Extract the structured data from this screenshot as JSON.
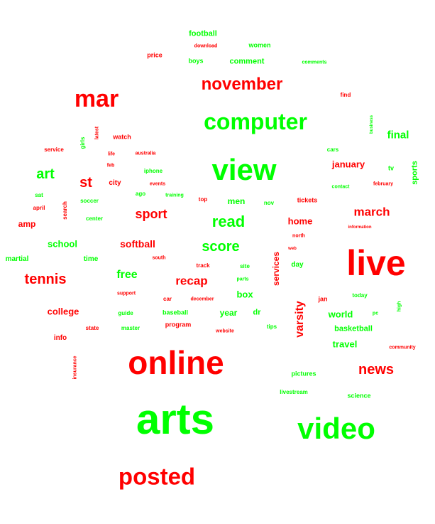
{
  "colors": {
    "red": "#ff0000",
    "green": "#00ff00",
    "background": "#ffffff"
  },
  "words": [
    {
      "text": "arts",
      "color": "green"
    },
    {
      "text": "live",
      "color": "red"
    },
    {
      "text": "online",
      "color": "red"
    },
    {
      "text": "video",
      "color": "green"
    },
    {
      "text": "view",
      "color": "green"
    },
    {
      "text": "posted",
      "color": "red"
    },
    {
      "text": "mar",
      "color": "red"
    },
    {
      "text": "computer",
      "color": "green"
    },
    {
      "text": "november",
      "color": "red"
    },
    {
      "text": "news",
      "color": "red"
    },
    {
      "text": "tennis",
      "color": "red"
    },
    {
      "text": "read",
      "color": "green"
    },
    {
      "text": "score",
      "color": "green"
    },
    {
      "text": "march",
      "color": "red"
    },
    {
      "text": "sport",
      "color": "red"
    },
    {
      "text": "art",
      "color": "green"
    },
    {
      "text": "st",
      "color": "red"
    },
    {
      "text": "recap",
      "color": "red"
    },
    {
      "text": "varsity",
      "color": "red"
    },
    {
      "text": "free",
      "color": "green"
    },
    {
      "text": "final",
      "color": "green"
    },
    {
      "text": "softball",
      "color": "red"
    },
    {
      "text": "college",
      "color": "red"
    },
    {
      "text": "travel",
      "color": "green"
    },
    {
      "text": "world",
      "color": "green"
    },
    {
      "text": "january",
      "color": "red"
    },
    {
      "text": "home",
      "color": "red"
    },
    {
      "text": "school",
      "color": "green"
    },
    {
      "text": "box",
      "color": "green"
    },
    {
      "text": "men",
      "color": "green"
    },
    {
      "text": "year",
      "color": "green"
    },
    {
      "text": "services",
      "color": "red"
    },
    {
      "text": "basketball",
      "color": "green"
    },
    {
      "text": "amp",
      "color": "red"
    },
    {
      "text": "sports",
      "color": "green"
    },
    {
      "text": "football",
      "color": "green"
    },
    {
      "text": "comment",
      "color": "green"
    },
    {
      "text": "dr",
      "color": "green"
    },
    {
      "text": "martial",
      "color": "green"
    },
    {
      "text": "time",
      "color": "green"
    },
    {
      "text": "info",
      "color": "red"
    },
    {
      "text": "city",
      "color": "red"
    },
    {
      "text": "day",
      "color": "green"
    },
    {
      "text": "baseball",
      "color": "green"
    },
    {
      "text": "program",
      "color": "red"
    },
    {
      "text": "pictures",
      "color": "green"
    },
    {
      "text": "jan",
      "color": "red"
    },
    {
      "text": "tickets",
      "color": "red"
    },
    {
      "text": "science",
      "color": "green"
    },
    {
      "text": "livestream",
      "color": "green"
    },
    {
      "text": "price",
      "color": "red"
    },
    {
      "text": "women",
      "color": "green"
    },
    {
      "text": "boys",
      "color": "green"
    },
    {
      "text": "watch",
      "color": "red"
    },
    {
      "text": "iphone",
      "color": "green"
    },
    {
      "text": "service",
      "color": "red"
    },
    {
      "text": "find",
      "color": "red"
    },
    {
      "text": "cars",
      "color": "green"
    },
    {
      "text": "tv",
      "color": "green"
    },
    {
      "text": "today",
      "color": "green"
    },
    {
      "text": "nov",
      "color": "green"
    },
    {
      "text": "top",
      "color": "red"
    },
    {
      "text": "state",
      "color": "red"
    },
    {
      "text": "tips",
      "color": "green"
    },
    {
      "text": "master",
      "color": "green"
    },
    {
      "text": "guide",
      "color": "green"
    },
    {
      "text": "car",
      "color": "red"
    },
    {
      "text": "track",
      "color": "red"
    },
    {
      "text": "site",
      "color": "green"
    },
    {
      "text": "april",
      "color": "red"
    },
    {
      "text": "sat",
      "color": "green"
    },
    {
      "text": "soccer",
      "color": "green"
    },
    {
      "text": "center",
      "color": "green"
    },
    {
      "text": "ago",
      "color": "green"
    },
    {
      "text": "search",
      "color": "red"
    },
    {
      "text": "girls",
      "color": "green"
    },
    {
      "text": "latest",
      "color": "red"
    },
    {
      "text": "insurance",
      "color": "red"
    },
    {
      "text": "high",
      "color": "green"
    },
    {
      "text": "pc",
      "color": "green"
    },
    {
      "text": "community",
      "color": "red"
    },
    {
      "text": "website",
      "color": "red"
    },
    {
      "text": "december",
      "color": "red"
    },
    {
      "text": "support",
      "color": "red"
    },
    {
      "text": "south",
      "color": "red"
    },
    {
      "text": "parts",
      "color": "green"
    },
    {
      "text": "web",
      "color": "red"
    },
    {
      "text": "north",
      "color": "red"
    },
    {
      "text": "information",
      "color": "red"
    },
    {
      "text": "contact",
      "color": "green"
    },
    {
      "text": "february",
      "color": "red"
    },
    {
      "text": "business",
      "color": "green"
    },
    {
      "text": "comments",
      "color": "green"
    },
    {
      "text": "download",
      "color": "red"
    },
    {
      "text": "events",
      "color": "red"
    },
    {
      "text": "training",
      "color": "green"
    },
    {
      "text": "australia",
      "color": "red"
    },
    {
      "text": "life",
      "color": "red"
    },
    {
      "text": "feb",
      "color": "red"
    }
  ]
}
